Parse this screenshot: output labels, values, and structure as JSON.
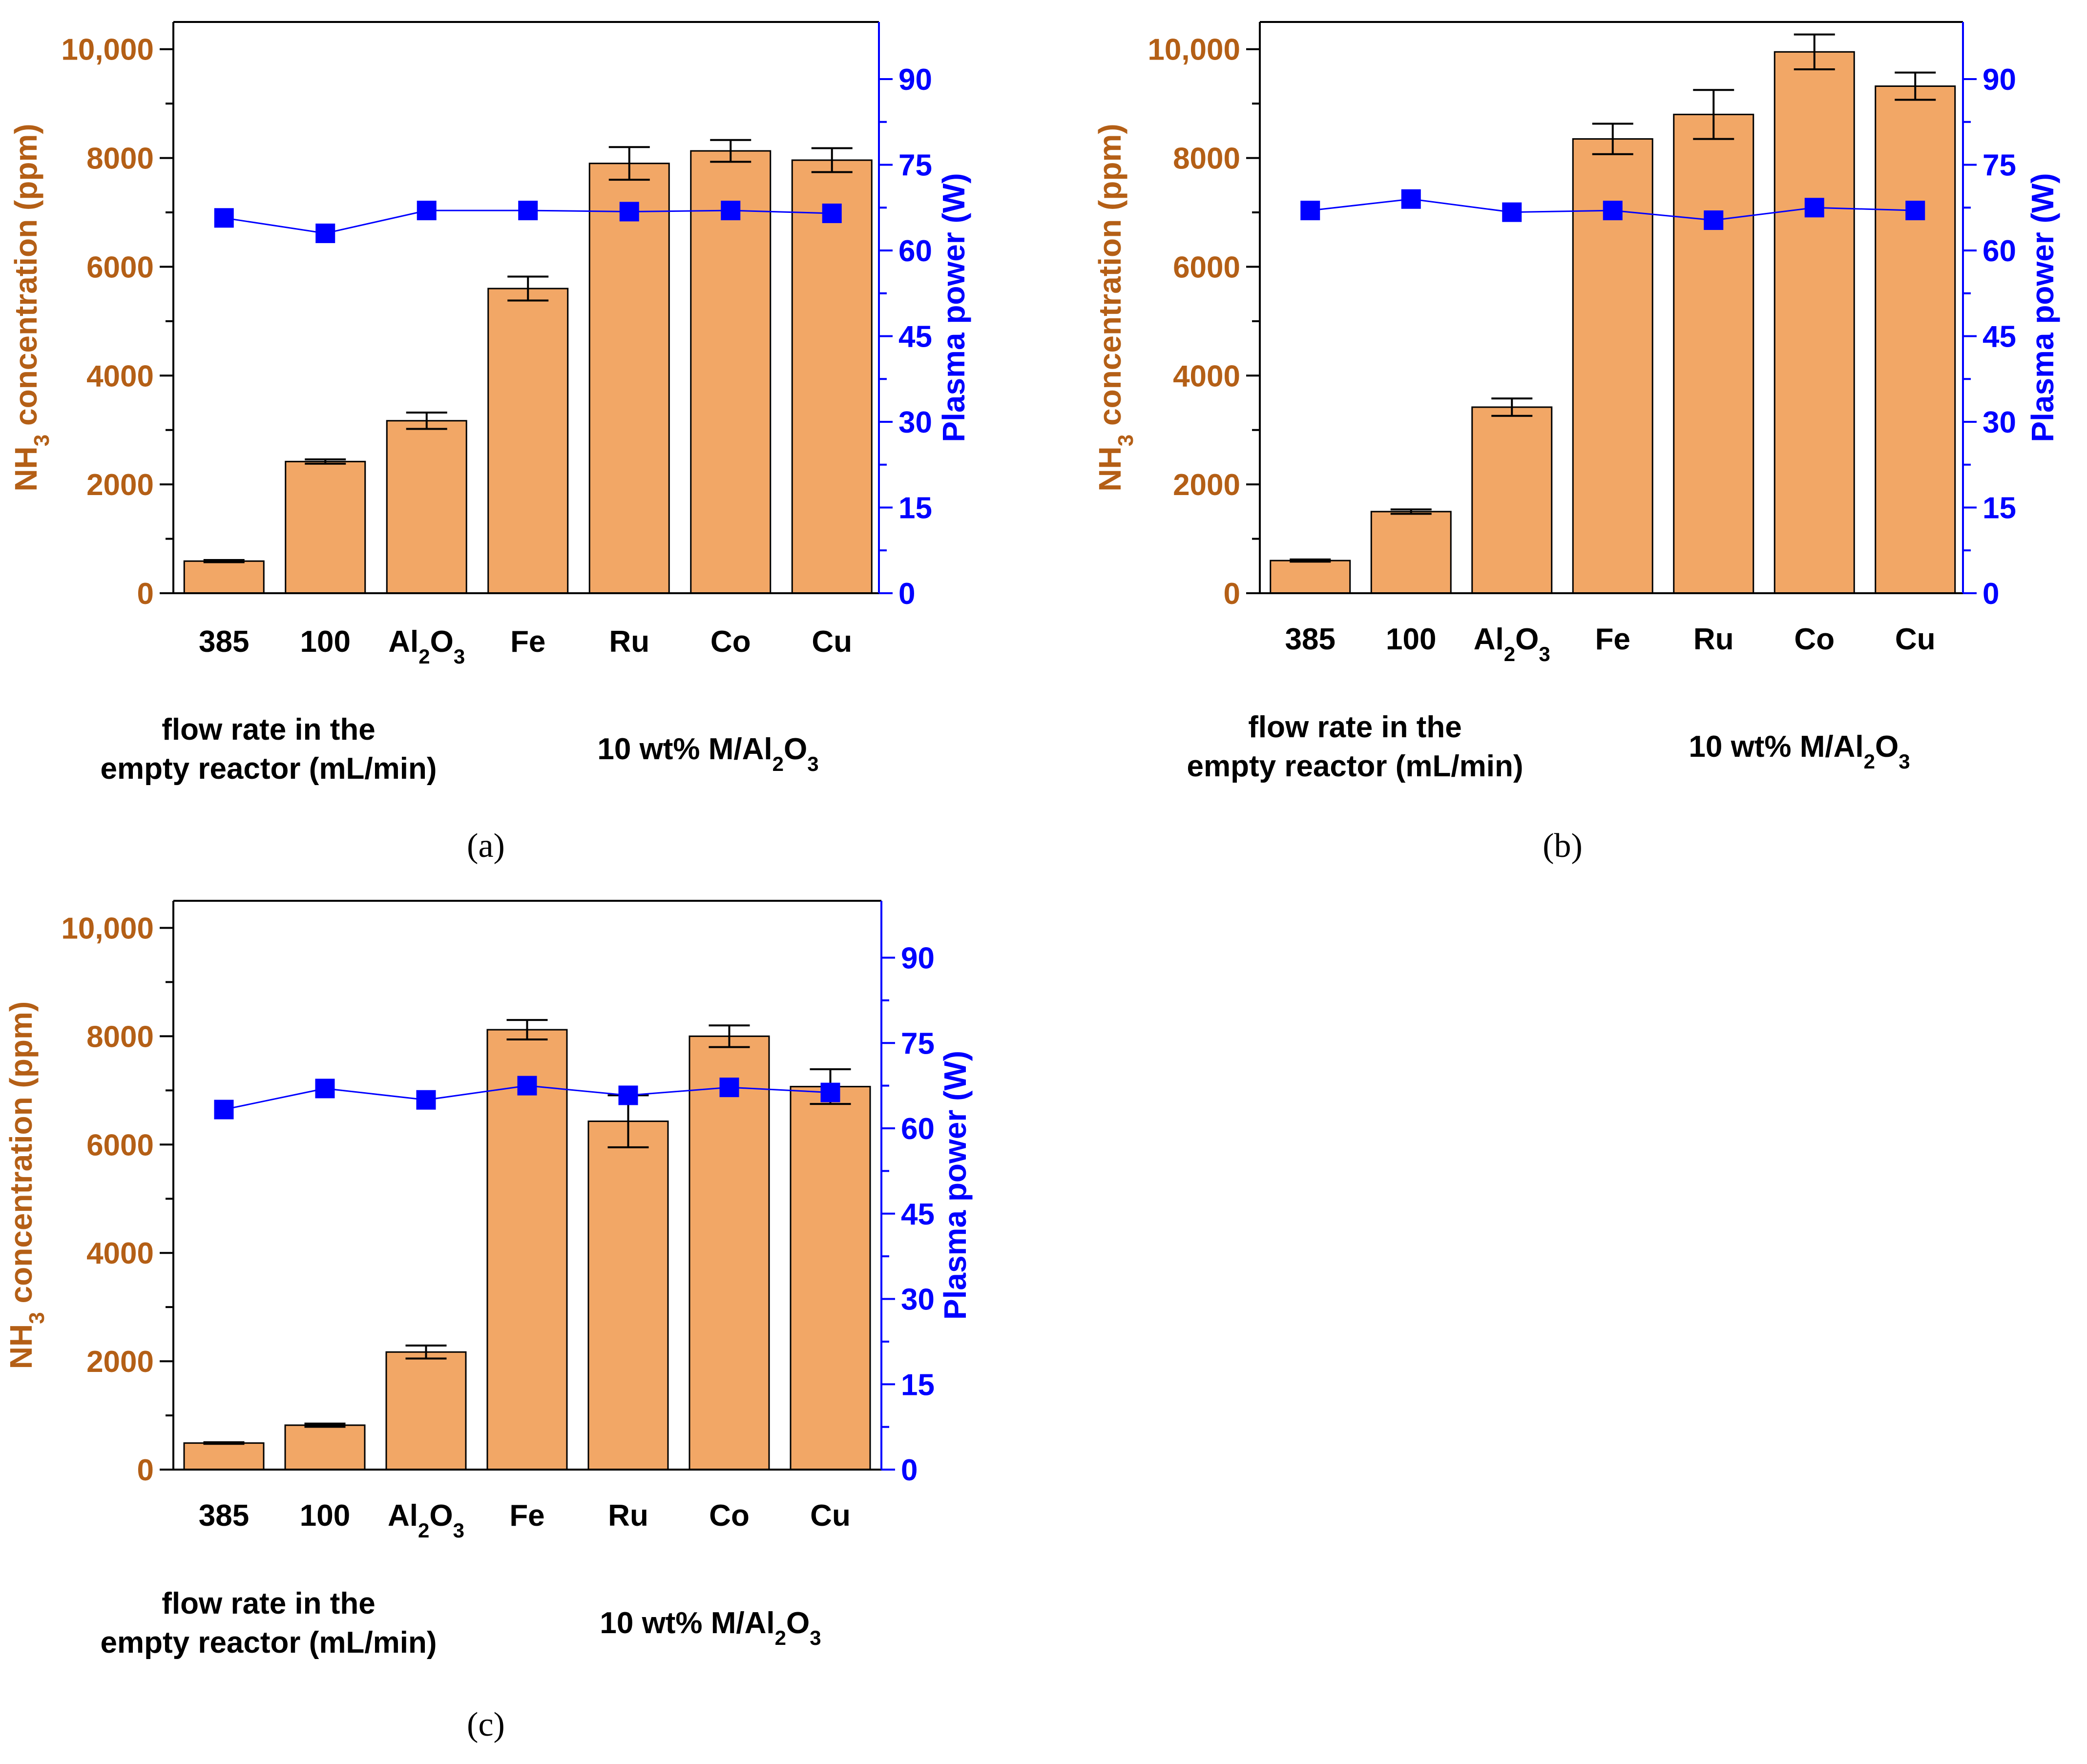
{
  "colors": {
    "bar_fill": "#F2A766",
    "bar_stroke": "#000000",
    "left_axis": "#B45F16",
    "right_axis": "#0000FF",
    "marker": "#0000FF",
    "frame": "#000000"
  },
  "chart_data": [
    {
      "panel_label": "(a)",
      "type": "bar",
      "categories": [
        "385",
        "100",
        "Al2O3",
        "Fe",
        "Ru",
        "Co",
        "Cu"
      ],
      "category_labels": [
        {
          "base": "385",
          "sub": "",
          "tail": ""
        },
        {
          "base": "100",
          "sub": "",
          "tail": ""
        },
        {
          "base": "Al",
          "sub": "2",
          "tail": "O",
          "sub2": "3"
        },
        {
          "base": "Fe",
          "sub": "",
          "tail": ""
        },
        {
          "base": "Ru",
          "sub": "",
          "tail": ""
        },
        {
          "base": "Co",
          "sub": "",
          "tail": ""
        },
        {
          "base": "Cu",
          "sub": "",
          "tail": ""
        }
      ],
      "left_axis": {
        "label_pre": "NH",
        "label_sub": "3",
        "label_post": " concentration (ppm)",
        "ylim": [
          0,
          10500
        ],
        "ticks": [
          0,
          2000,
          4000,
          6000,
          8000,
          10000
        ],
        "tick_labels": [
          "0",
          "2000",
          "4000",
          "6000",
          "8000",
          "10,000"
        ]
      },
      "right_axis": {
        "label": "Plasma power (W)",
        "ylim": [
          0,
          100
        ],
        "ticks": [
          0,
          15,
          30,
          45,
          60,
          75,
          90
        ],
        "tick_labels": [
          "0",
          "15",
          "30",
          "45",
          "60",
          "75",
          "90"
        ]
      },
      "series": [
        {
          "name": "NH3 concentration",
          "kind": "bar",
          "axis": "left",
          "values": [
            590,
            2420,
            3170,
            5600,
            7900,
            8130,
            7960
          ],
          "errors": [
            20,
            40,
            150,
            220,
            300,
            200,
            220
          ]
        },
        {
          "name": "Plasma power",
          "kind": "line-marker",
          "axis": "right",
          "values": [
            65.7,
            63,
            67,
            67,
            66.8,
            67,
            66.5
          ]
        }
      ],
      "group_labels": {
        "left_line1": "flow rate in the",
        "left_line2": "empty reactor (mL/min)",
        "right_pre": "10 wt% M/Al",
        "right_sub1": "2",
        "right_mid": "O",
        "right_sub2": "3"
      }
    },
    {
      "panel_label": "(b)",
      "type": "bar",
      "categories": [
        "385",
        "100",
        "Al2O3",
        "Fe",
        "Ru",
        "Co",
        "Cu"
      ],
      "category_labels": [
        {
          "base": "385",
          "sub": "",
          "tail": ""
        },
        {
          "base": "100",
          "sub": "",
          "tail": ""
        },
        {
          "base": "Al",
          "sub": "2",
          "tail": "O",
          "sub2": "3"
        },
        {
          "base": "Fe",
          "sub": "",
          "tail": ""
        },
        {
          "base": "Ru",
          "sub": "",
          "tail": ""
        },
        {
          "base": "Co",
          "sub": "",
          "tail": ""
        },
        {
          "base": "Cu",
          "sub": "",
          "tail": ""
        }
      ],
      "left_axis": {
        "label_pre": "NH",
        "label_sub": "3",
        "label_post": " concentration (ppm)",
        "ylim": [
          0,
          10500
        ],
        "ticks": [
          0,
          2000,
          4000,
          6000,
          8000,
          10000
        ],
        "tick_labels": [
          "0",
          "2000",
          "4000",
          "6000",
          "8000",
          "10,000"
        ]
      },
      "right_axis": {
        "label": "Plasma power (W)",
        "ylim": [
          0,
          100
        ],
        "ticks": [
          0,
          15,
          30,
          45,
          60,
          75,
          90
        ],
        "tick_labels": [
          "0",
          "15",
          "30",
          "45",
          "60",
          "75",
          "90"
        ]
      },
      "series": [
        {
          "name": "NH3 concentration",
          "kind": "bar",
          "axis": "left",
          "values": [
            600,
            1500,
            3420,
            8350,
            8800,
            9950,
            9320
          ],
          "errors": [
            20,
            40,
            160,
            280,
            450,
            320,
            250
          ]
        },
        {
          "name": "Plasma power",
          "kind": "line-marker",
          "axis": "right",
          "values": [
            67,
            69,
            66.7,
            67,
            65.3,
            67.5,
            67
          ]
        }
      ],
      "group_labels": {
        "left_line1": "flow rate in the",
        "left_line2": "empty reactor (mL/min)",
        "right_pre": "10 wt% M/Al",
        "right_sub1": "2",
        "right_mid": "O",
        "right_sub2": "3"
      }
    },
    {
      "panel_label": "(c)",
      "type": "bar",
      "categories": [
        "385",
        "100",
        "Al2O3",
        "Fe",
        "Ru",
        "Co",
        "Cu"
      ],
      "category_labels": [
        {
          "base": "385",
          "sub": "",
          "tail": ""
        },
        {
          "base": "100",
          "sub": "",
          "tail": ""
        },
        {
          "base": "Al",
          "sub": "2",
          "tail": "O",
          "sub2": "3"
        },
        {
          "base": "Fe",
          "sub": "",
          "tail": ""
        },
        {
          "base": "Ru",
          "sub": "",
          "tail": ""
        },
        {
          "base": "Co",
          "sub": "",
          "tail": ""
        },
        {
          "base": "Cu",
          "sub": "",
          "tail": ""
        }
      ],
      "left_axis": {
        "label_pre": "NH",
        "label_sub": "3",
        "label_post": " concentration (ppm)",
        "ylim": [
          0,
          10500
        ],
        "ticks": [
          0,
          2000,
          4000,
          6000,
          8000,
          10000
        ],
        "tick_labels": [
          "0",
          "2000",
          "4000",
          "6000",
          "8000",
          "10,000"
        ]
      },
      "right_axis": {
        "label": "Plasma power (W)",
        "ylim": [
          0,
          100
        ],
        "ticks": [
          0,
          15,
          30,
          45,
          60,
          75,
          90
        ],
        "tick_labels": [
          "0",
          "15",
          "30",
          "45",
          "60",
          "75",
          "90"
        ]
      },
      "series": [
        {
          "name": "NH3 concentration",
          "kind": "bar",
          "axis": "left",
          "values": [
            490,
            820,
            2170,
            8120,
            6430,
            8000,
            7070
          ],
          "errors": [
            15,
            30,
            120,
            180,
            480,
            200,
            320
          ]
        },
        {
          "name": "Plasma power",
          "kind": "line-marker",
          "axis": "right",
          "values": [
            63.3,
            67,
            65,
            67.5,
            65.8,
            67.2,
            66.3
          ]
        }
      ],
      "group_labels": {
        "left_line1": "flow rate in the",
        "left_line2": "empty reactor (mL/min)",
        "right_pre": "10 wt% M/Al",
        "right_sub1": "2",
        "right_mid": "O",
        "right_sub2": "3"
      }
    }
  ]
}
